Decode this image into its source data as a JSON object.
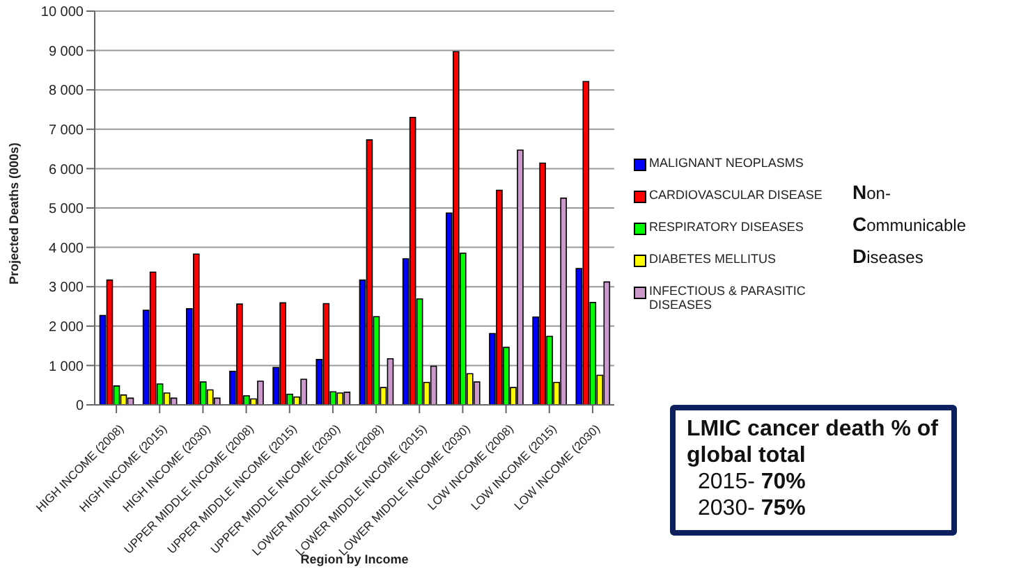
{
  "chart_data": {
    "type": "bar",
    "xlabel": "Region by Income",
    "ylabel": "Projected Deaths (000s)",
    "categories": [
      "HIGH INCOME (2008)",
      "HIGH INCOME (2015)",
      "HIGH INCOME (2030)",
      "UPPER MIDDLE INCOME (2008)",
      "UPPER MIDDLE INCOME (2015)",
      "UPPER MIDDLE INCOME (2030)",
      "LOWER MIDDLE INCOME (2008)",
      "LOWER MIDDLE INCOME (2015)",
      "LOWER MIDDLE INCOME (2030)",
      "LOW INCOME (2008)",
      "LOW INCOME (2015)",
      "LOW INCOME (2030)"
    ],
    "series": [
      {
        "name": "MALIGNANT NEOPLASMS",
        "color": "#0000ff",
        "values": [
          2270,
          2400,
          2440,
          850,
          950,
          1150,
          3170,
          3710,
          4870,
          1810,
          2230,
          3460
        ]
      },
      {
        "name": "CARDIOVASCULAR DISEASE",
        "color": "#ff0000",
        "values": [
          3170,
          3370,
          3830,
          2560,
          2590,
          2570,
          6730,
          7300,
          8970,
          5450,
          6140,
          8210
        ]
      },
      {
        "name": "RESPIRATORY DISEASES",
        "color": "#00ff00",
        "values": [
          480,
          530,
          580,
          230,
          270,
          330,
          2240,
          2690,
          3850,
          1460,
          1740,
          2600
        ]
      },
      {
        "name": "DIABETES MELLITUS",
        "color": "#ffff00",
        "values": [
          250,
          300,
          380,
          150,
          200,
          300,
          440,
          570,
          790,
          440,
          570,
          750
        ]
      },
      {
        "name": "INFECTIOUS & PARASITIC DISEASES",
        "color": "#cc99cc",
        "values": [
          170,
          170,
          170,
          600,
          650,
          320,
          1170,
          980,
          580,
          6470,
          5250,
          3120
        ]
      }
    ],
    "ylim": [
      0,
      10000
    ],
    "yticks": [
      0,
      {
        "value": 1000,
        "label": "1 000"
      },
      {
        "value": 2000,
        "label": "2 000"
      },
      {
        "value": 3000,
        "label": "3 000"
      },
      {
        "value": 4000,
        "label": "4 000"
      },
      {
        "value": 5000,
        "label": "5 000"
      },
      {
        "value": 6000,
        "label": "6 000"
      },
      {
        "value": 7000,
        "label": "7 000"
      },
      {
        "value": 8000,
        "label": "8 000"
      },
      {
        "value": 9000,
        "label": "9 000"
      },
      {
        "value": 10000,
        "label": "10 000"
      }
    ],
    "grid": "y",
    "legend": "right",
    "annotations": [
      "Non-Communicable Diseases",
      "LMIC cancer death % of global total",
      "2015- 70%",
      "2030- 75%"
    ]
  }
}
